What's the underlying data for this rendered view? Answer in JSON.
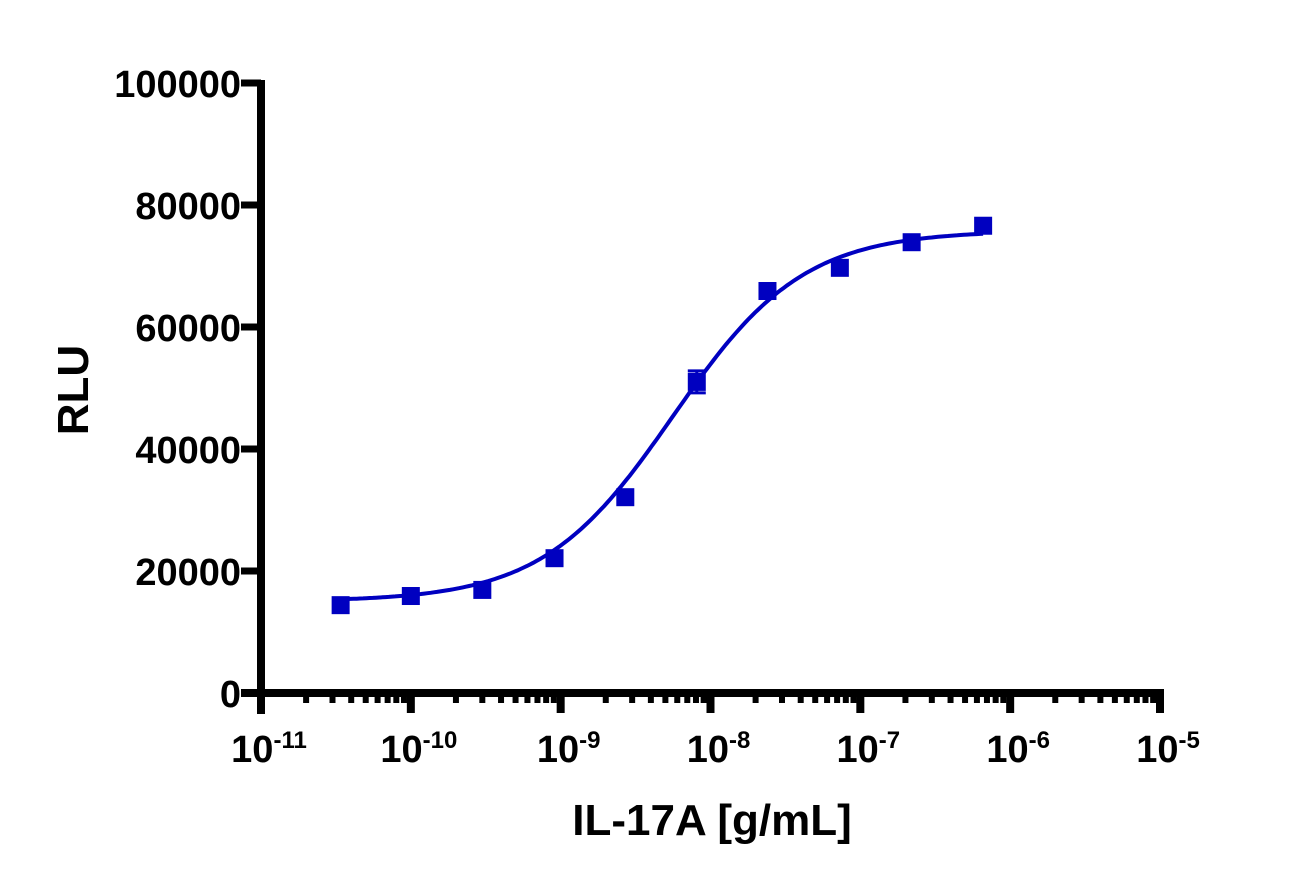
{
  "chart_data": {
    "type": "scatter",
    "title": "",
    "xlabel": "IL-17A [g/mL]",
    "ylabel": "RLU",
    "xscale": "log",
    "xlim": [
      1e-11,
      1e-05
    ],
    "ylim": [
      0,
      100000
    ],
    "grid": false,
    "legend": null,
    "x_ticks": [
      {
        "base": "10",
        "exp": "-11",
        "value": 1e-11
      },
      {
        "base": "10",
        "exp": "-10",
        "value": 1e-10
      },
      {
        "base": "10",
        "exp": "-9",
        "value": 1e-09
      },
      {
        "base": "10",
        "exp": "-8",
        "value": 1e-08
      },
      {
        "base": "10",
        "exp": "-7",
        "value": 1e-07
      },
      {
        "base": "10",
        "exp": "-6",
        "value": 1e-06
      },
      {
        "base": "10",
        "exp": "-5",
        "value": 1e-05
      }
    ],
    "y_ticks": [
      "0",
      "20000",
      "40000",
      "60000",
      "80000",
      "100000"
    ],
    "series": [
      {
        "name": "IL-17A",
        "color": "#0000C0",
        "marker": "square",
        "fit": "4-parameter logistic",
        "x": [
          3.4e-11,
          1e-10,
          3e-10,
          9.1e-10,
          2.7e-09,
          8.1e-09,
          2.4e-08,
          7.3e-08,
          2.2e-07,
          6.6e-07
        ],
        "values": [
          14400,
          15900,
          16900,
          22100,
          32100,
          51000,
          65900,
          69700,
          73900,
          76600
        ],
        "error": [
          500,
          600,
          500,
          500,
          600,
          1800,
          1200,
          1100,
          600,
          600
        ]
      }
    ],
    "fit_params": {
      "bottom": 15000,
      "top": 75800,
      "logEC50": -8.25,
      "hill": 1.0
    }
  }
}
